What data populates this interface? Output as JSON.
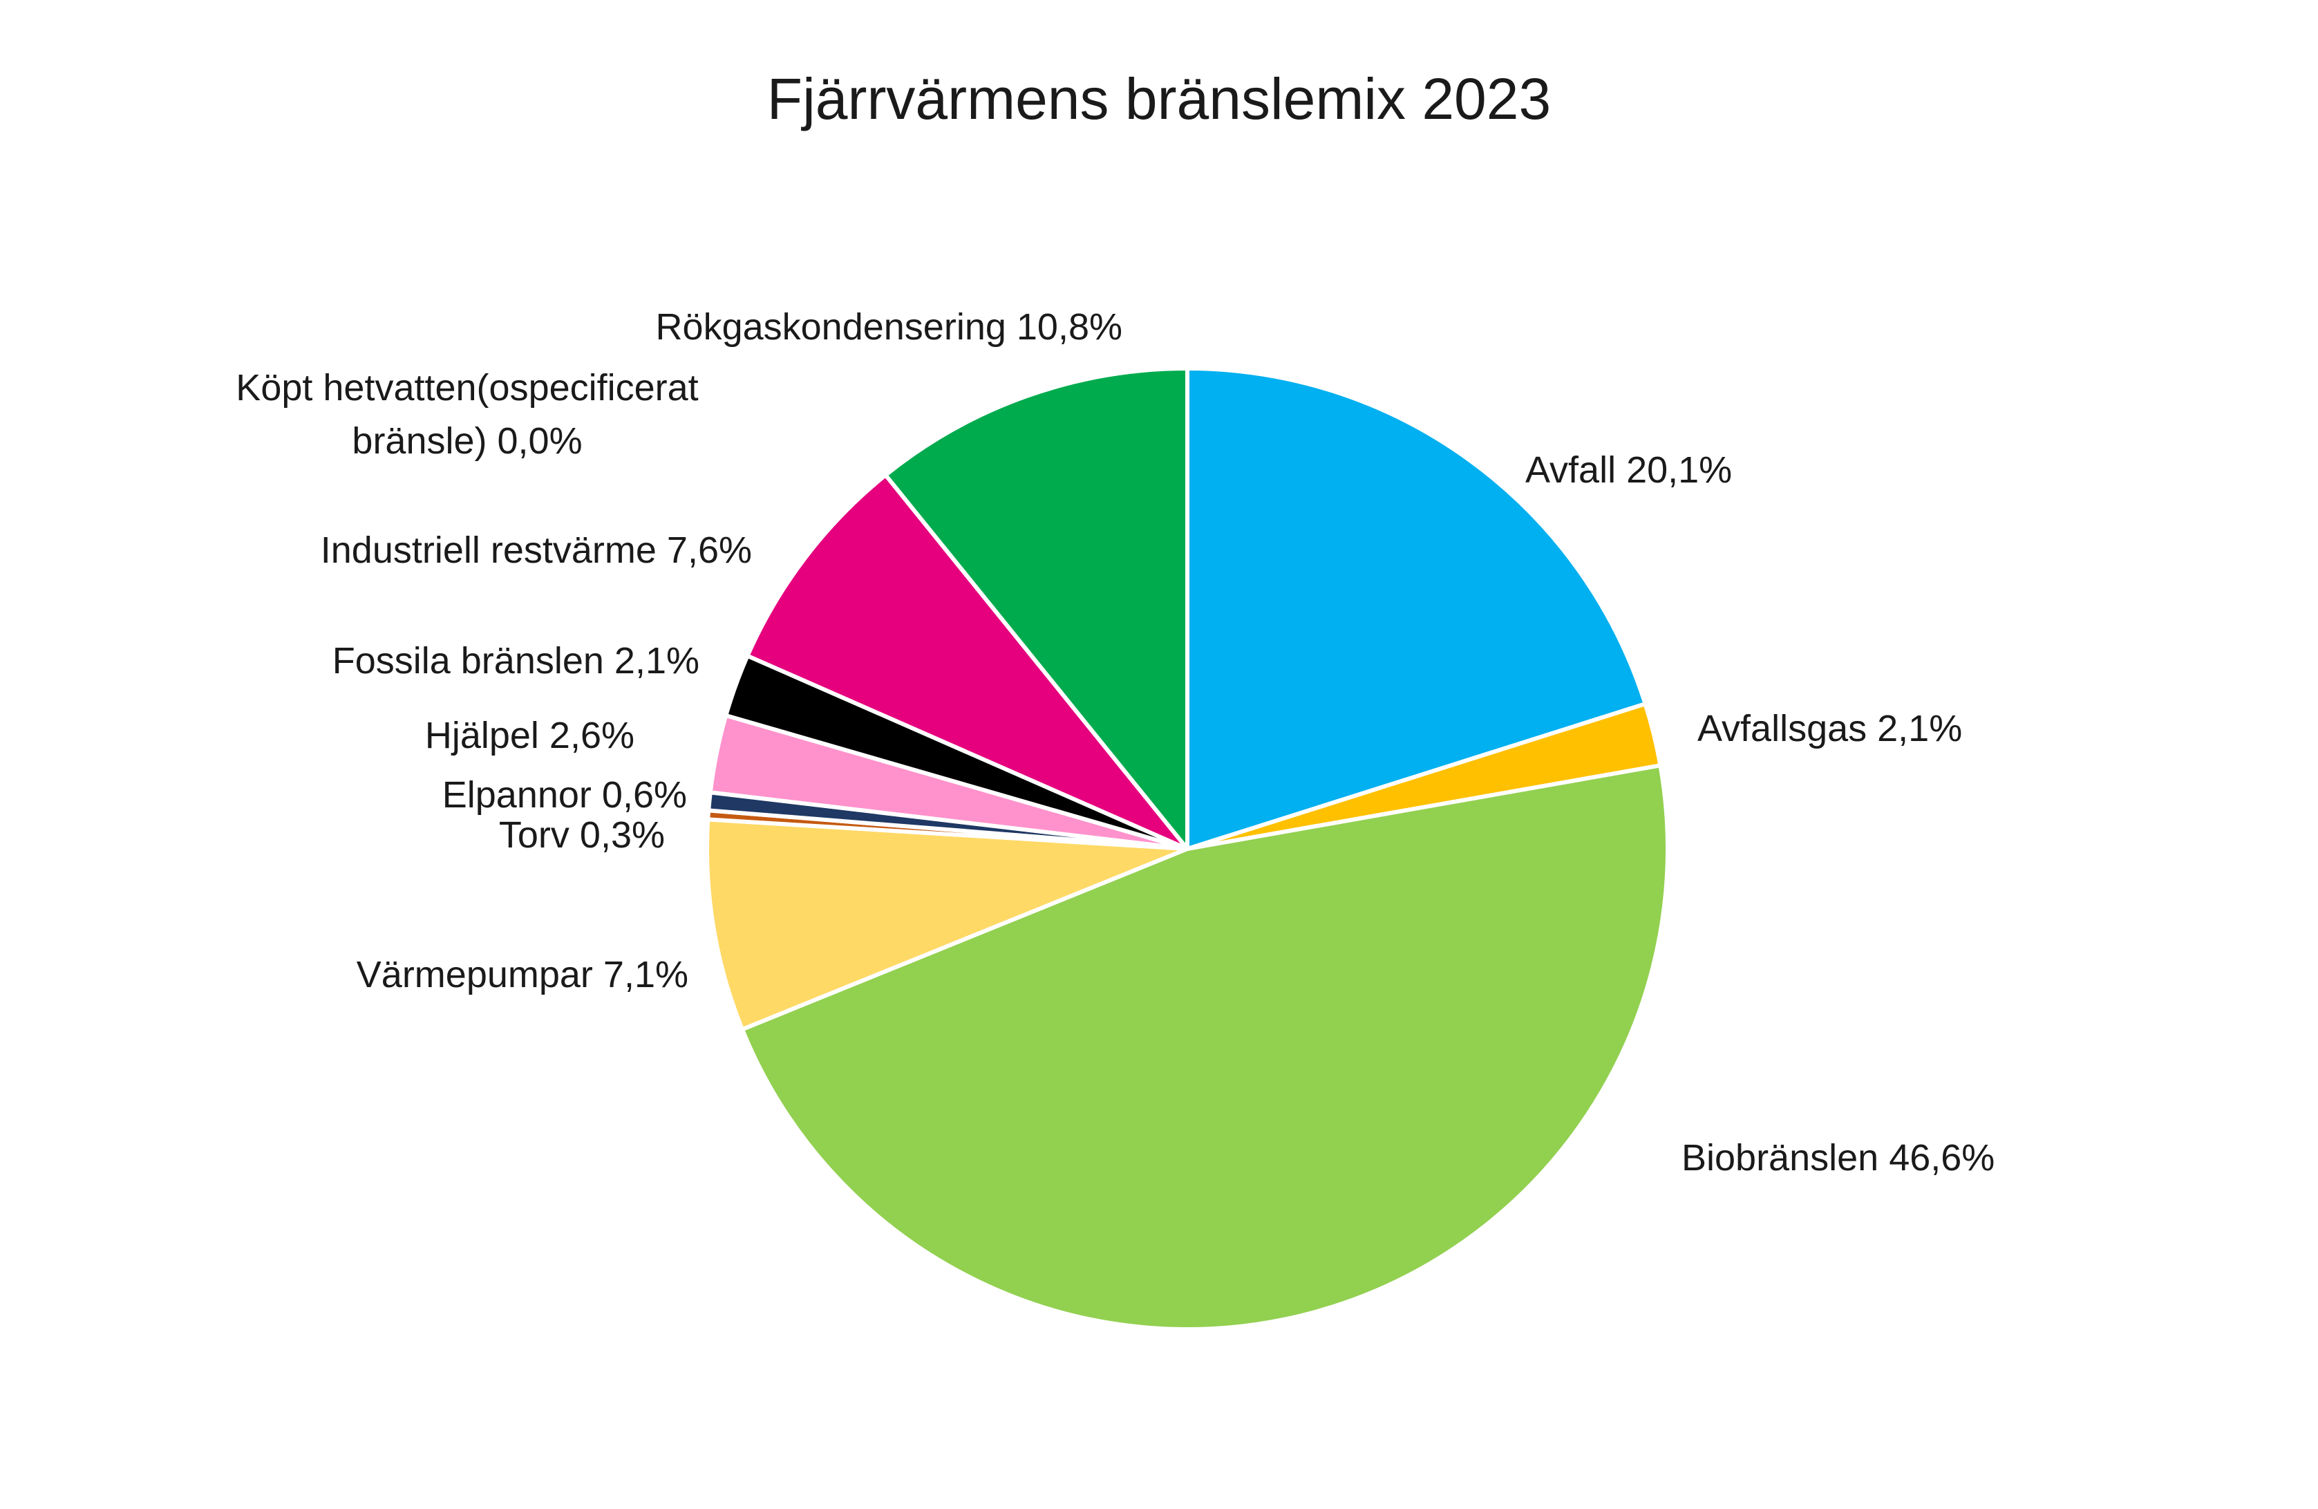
{
  "chart_data": {
    "type": "pie",
    "title": "Fjärrvärmens bränslemix 2023",
    "slices": [
      {
        "label": "Avfall 20,1%",
        "value": 20.1,
        "color": "#00B0F0"
      },
      {
        "label": "Avfallsgas 2,1%",
        "value": 2.1,
        "color": "#FFC000"
      },
      {
        "label": "Biobränslen 46,6%",
        "value": 46.6,
        "color": "#92D050"
      },
      {
        "label": "Värmepumpar 7,1%",
        "value": 7.1,
        "color": "#FFD966"
      },
      {
        "label": "Torv 0,3%",
        "value": 0.3,
        "color": "#C55A11"
      },
      {
        "label": "Elpannor 0,6%",
        "value": 0.6,
        "color": "#1F3864"
      },
      {
        "label": "Hjälpel 2,6%",
        "value": 2.6,
        "color": "#FF92CC"
      },
      {
        "label": "Fossila bränslen 2,1%",
        "value": 2.1,
        "color": "#000000"
      },
      {
        "label": "Industriell restvärme 7,6%",
        "value": 7.6,
        "color": "#E6007E"
      },
      {
        "label": "Köpt hetvatten(ospecificerat bränsle) 0,0%",
        "value": 0.0,
        "color": "#7F7F7F"
      },
      {
        "label": "Rökgaskondensering 10,8%",
        "value": 10.8,
        "color": "#00AB4E"
      }
    ]
  }
}
